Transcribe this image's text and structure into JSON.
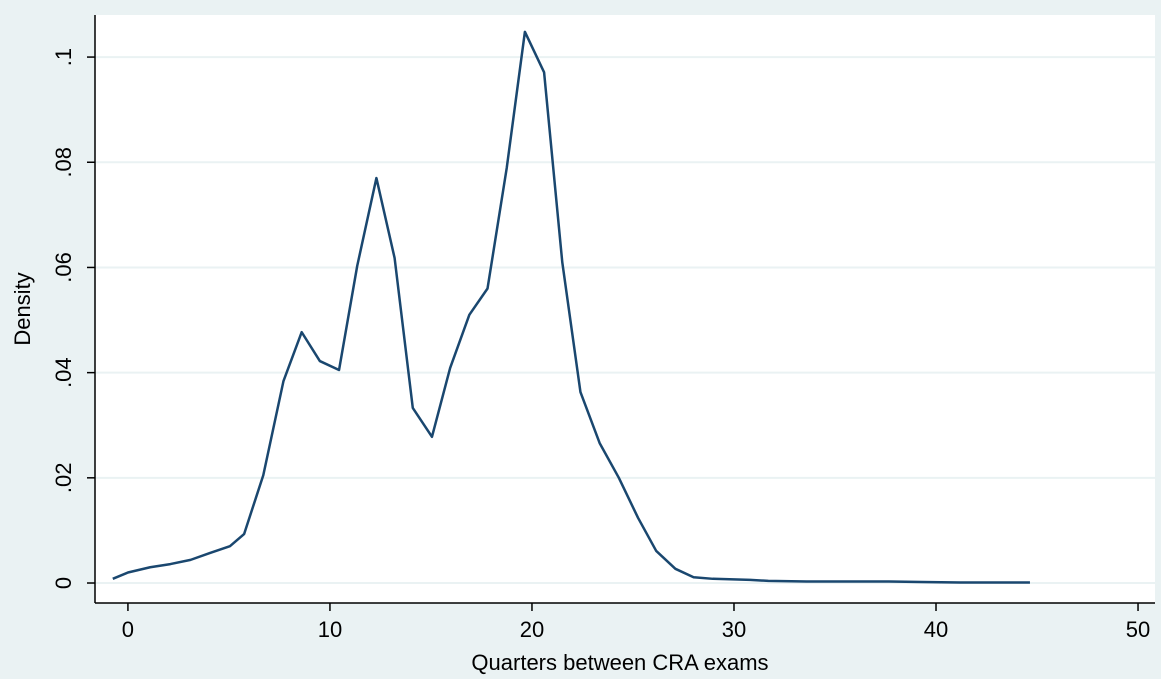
{
  "chart_data": {
    "type": "line",
    "x_label": "Quarters between CRA exams",
    "y_label": "Density",
    "x": [
      -0.75,
      0,
      1.1,
      2.1,
      3.1,
      4.05,
      5.05,
      5.75,
      6.7,
      7.7,
      8.6,
      9.5,
      10.45,
      11.35,
      12.3,
      13.2,
      14.1,
      15.05,
      15.95,
      16.9,
      17.8,
      18.75,
      19.65,
      20.6,
      21.5,
      22.4,
      23.35,
      24.3,
      25.25,
      26.15,
      27.1,
      28.0,
      28.95,
      30.8,
      31.7,
      33.6,
      35.5,
      37.4,
      39.3,
      41.2,
      43.0,
      44.65
    ],
    "values": [
      0.0008,
      0.002,
      0.003,
      0.0036,
      0.0044,
      0.0057,
      0.007,
      0.0093,
      0.0205,
      0.0384,
      0.0477,
      0.0422,
      0.0405,
      0.0603,
      0.077,
      0.0618,
      0.0333,
      0.0278,
      0.0409,
      0.051,
      0.056,
      0.0789,
      0.1048,
      0.0971,
      0.061,
      0.0363,
      0.0266,
      0.02,
      0.0124,
      0.0061,
      0.0027,
      0.0011,
      0.0008,
      0.0006,
      0.0004,
      0.0003,
      0.0003,
      0.0003,
      0.0002,
      0.0001,
      0.0001,
      0.0001
    ],
    "color": "#1a476f",
    "xlim": [
      -1.63,
      50.84
    ],
    "ylim": [
      -0.0038,
      0.108
    ],
    "xticks": [
      0,
      10,
      20,
      30,
      40,
      50
    ],
    "yticks": [
      0,
      {
        "value": 0.02,
        "label": ".02"
      },
      {
        "value": 0.04,
        "label": ".04"
      },
      {
        "value": 0.06,
        "label": ".06"
      },
      {
        "value": 0.08,
        "label": ".08"
      },
      {
        "value": 0.1,
        "label": ".1"
      }
    ],
    "grid": true
  }
}
